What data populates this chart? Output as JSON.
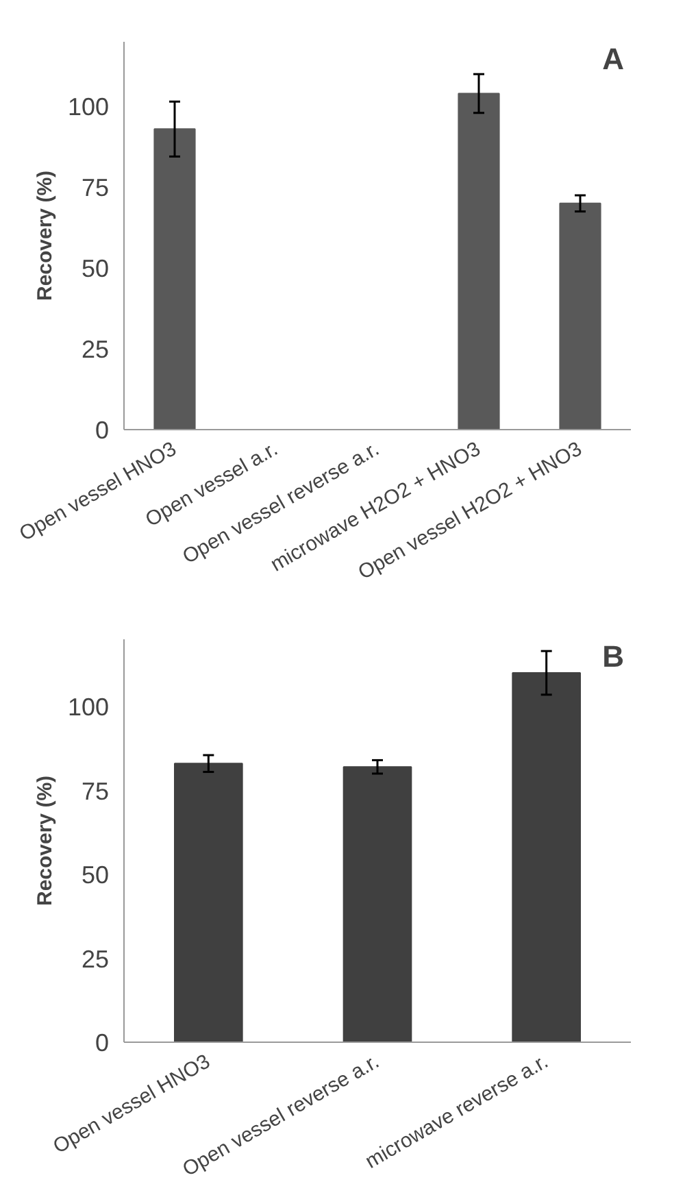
{
  "chart_data": [
    {
      "type": "bar",
      "ylabel": "Recovery (%)",
      "annotations": [
        "A"
      ],
      "categories": [
        "Open vessel HNO3",
        "Open vessel a.r.",
        "Open vessel reverse a.r.",
        "microwave H2O2 + HNO3",
        "Open vessel H2O2 + HNO3"
      ],
      "series": [
        {
          "color": "#595959",
          "values": [
            93,
            0,
            0,
            104,
            70
          ],
          "errors": [
            8.5,
            null,
            null,
            6,
            2.5
          ]
        }
      ],
      "ylim": [
        0,
        120
      ],
      "yticks": [
        0,
        25,
        50,
        75,
        100
      ],
      "grid": false
    },
    {
      "type": "bar",
      "ylabel": "Recovery (%)",
      "annotations": [
        "B"
      ],
      "categories": [
        "Open vessel HNO3",
        "Open vessel reverse a.r.",
        "microwave reverse a.r."
      ],
      "series": [
        {
          "color": "#404040",
          "values": [
            83,
            82,
            110
          ],
          "errors": [
            2.5,
            2,
            6.5
          ]
        }
      ],
      "ylim": [
        0,
        120
      ],
      "yticks": [
        0,
        25,
        50,
        75,
        100
      ],
      "grid": false
    }
  ]
}
